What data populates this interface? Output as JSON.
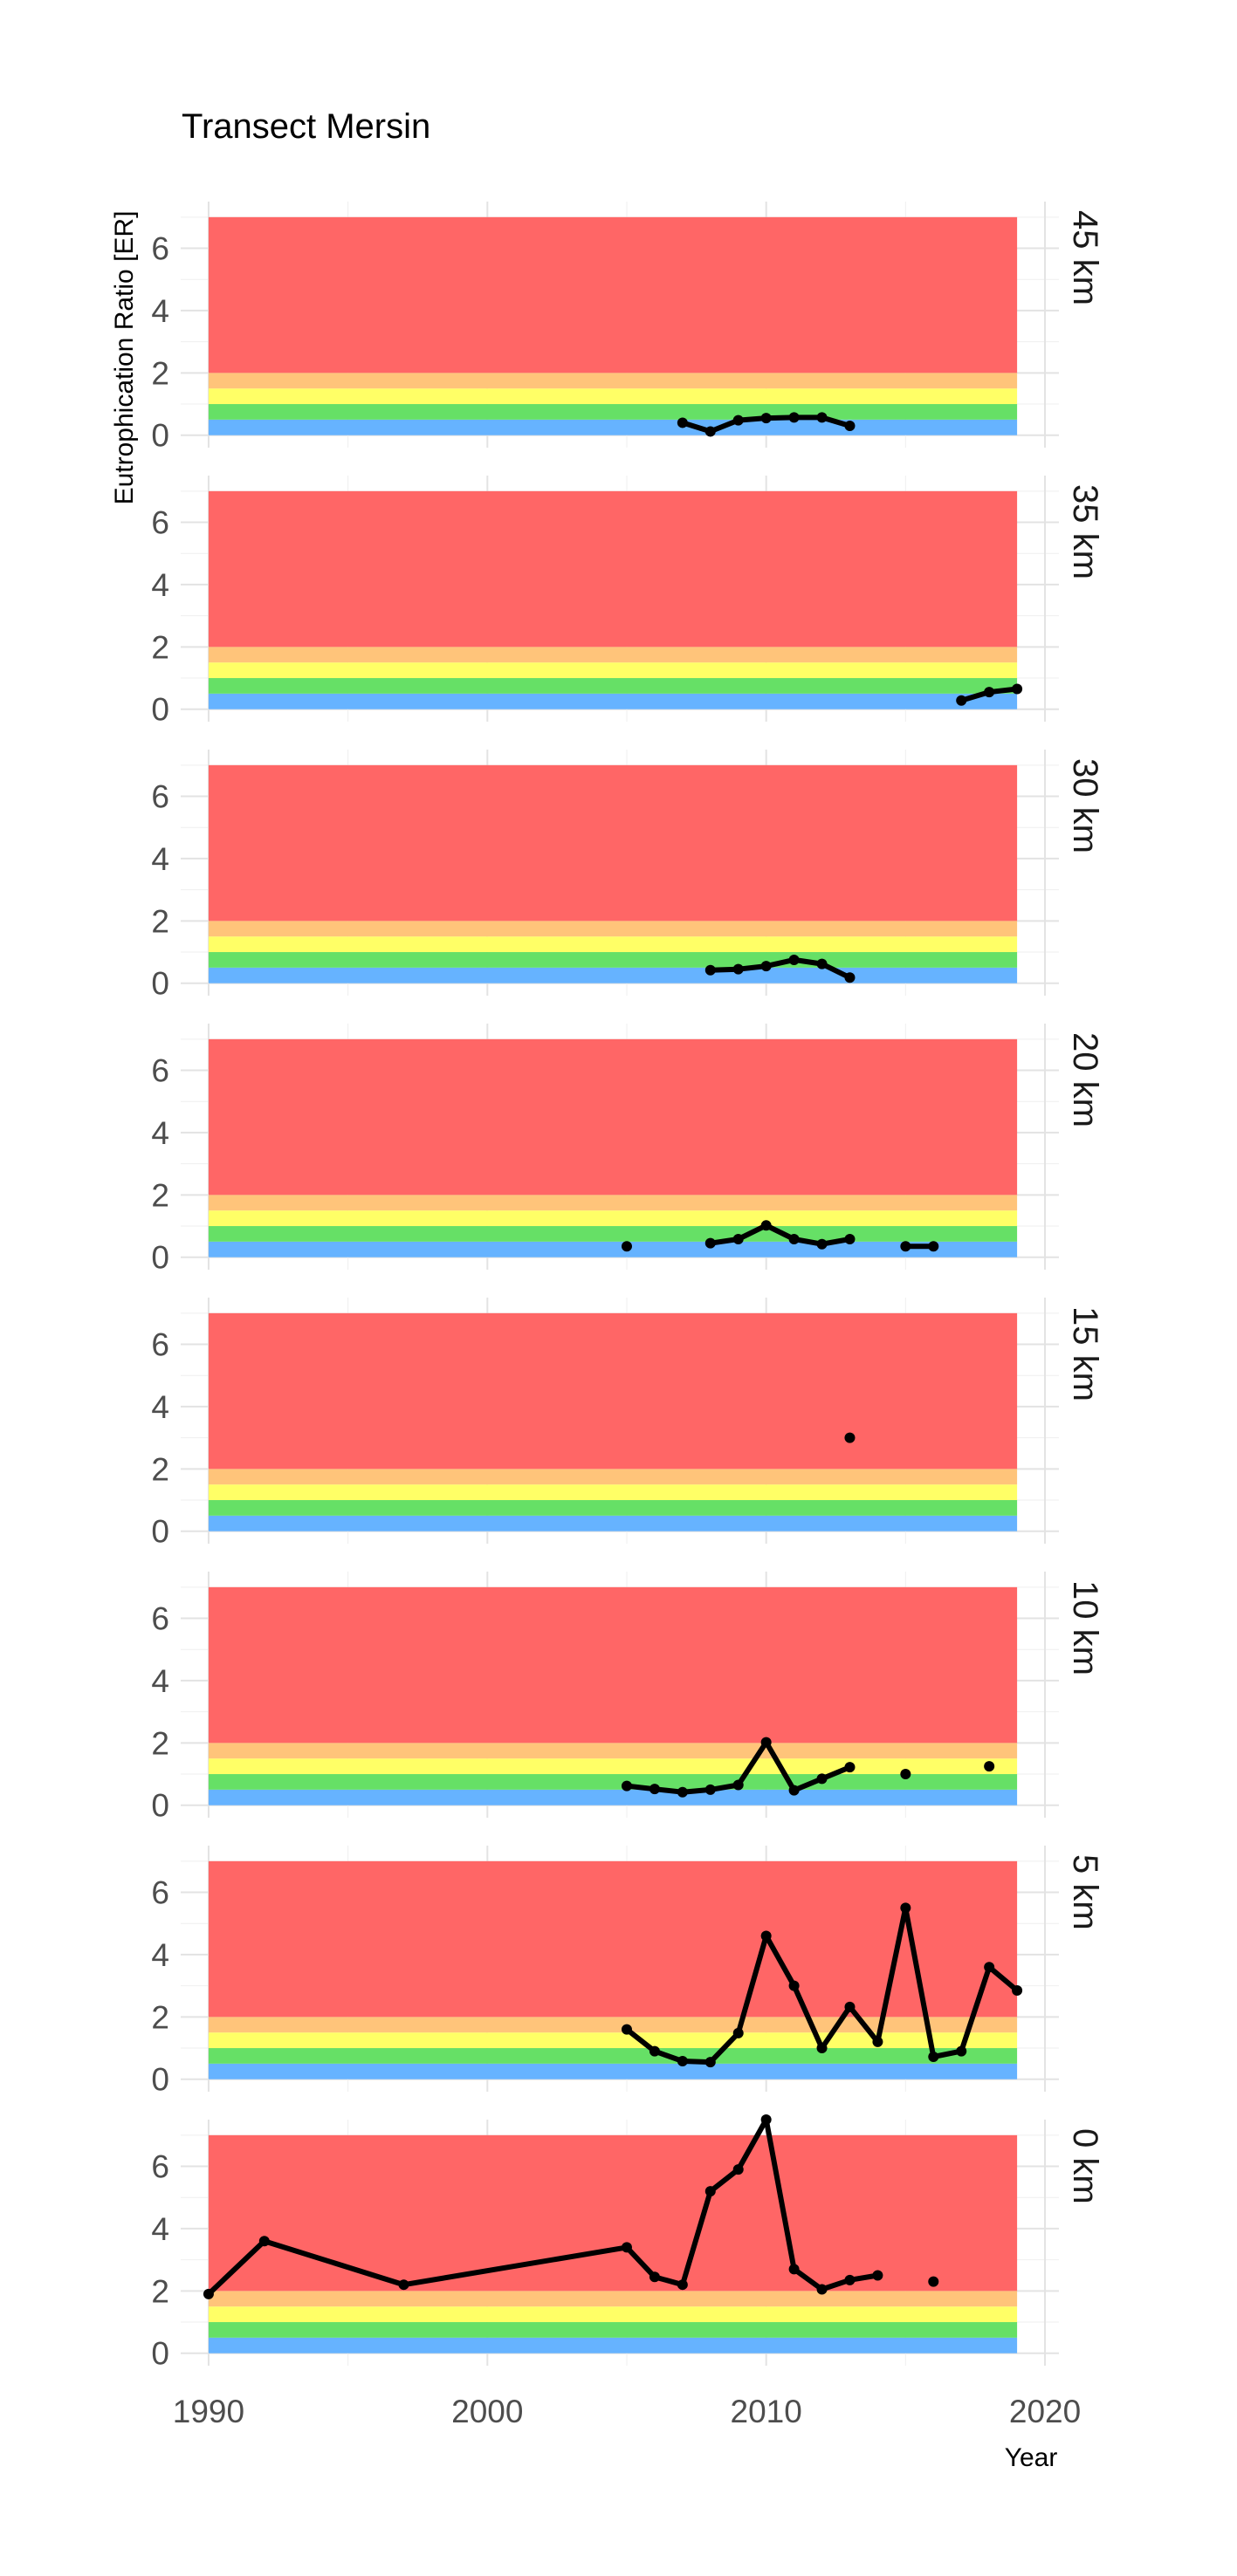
{
  "chart_data": {
    "type": "line",
    "title": "Transect Mersin",
    "xlabel": "Year",
    "ylabel": "Eutrophication Ratio [ER]",
    "xlim": [
      1989,
      2020.5
    ],
    "ylim": [
      -0.4,
      7.5
    ],
    "x_ticks": [
      1990,
      2000,
      2010,
      2020
    ],
    "y_ticks": [
      0,
      2,
      4,
      6
    ],
    "grid": true,
    "facet_by": "distance",
    "bands": [
      {
        "from": 0,
        "to": 0.5,
        "color": "#66b3ff"
      },
      {
        "from": 0.5,
        "to": 1.0,
        "color": "#66e066"
      },
      {
        "from": 1.0,
        "to": 1.5,
        "color": "#ffff66"
      },
      {
        "from": 1.5,
        "to": 2.0,
        "color": "#ffc47a"
      },
      {
        "from": 2.0,
        "to": 7.0,
        "color": "#ff6666"
      }
    ],
    "panels": [
      {
        "label": "45 km",
        "segments": [
          [
            [
              2007,
              0.4
            ],
            [
              2008,
              0.12
            ],
            [
              2009,
              0.48
            ],
            [
              2010,
              0.55
            ],
            [
              2011,
              0.57
            ],
            [
              2012,
              0.57
            ],
            [
              2013,
              0.3
            ]
          ]
        ],
        "points": []
      },
      {
        "label": "35 km",
        "segments": [
          [
            [
              2017,
              0.28
            ],
            [
              2018,
              0.55
            ],
            [
              2019,
              0.65
            ]
          ]
        ],
        "points": []
      },
      {
        "label": "30 km",
        "segments": [
          [
            [
              2008,
              0.42
            ],
            [
              2009,
              0.45
            ],
            [
              2010,
              0.55
            ],
            [
              2011,
              0.75
            ],
            [
              2012,
              0.62
            ],
            [
              2013,
              0.18
            ]
          ]
        ],
        "points": []
      },
      {
        "label": "20 km",
        "segments": [
          [
            [
              2008,
              0.45
            ],
            [
              2009,
              0.58
            ],
            [
              2010,
              1.02
            ],
            [
              2011,
              0.58
            ],
            [
              2012,
              0.42
            ],
            [
              2013,
              0.58
            ]
          ],
          [
            [
              2015,
              0.35
            ],
            [
              2016,
              0.35
            ]
          ]
        ],
        "points": [
          [
            2005,
            0.35
          ]
        ]
      },
      {
        "label": "15 km",
        "segments": [],
        "points": [
          [
            2013,
            3.0
          ]
        ]
      },
      {
        "label": "10 km",
        "segments": [
          [
            [
              2005,
              0.62
            ],
            [
              2006,
              0.52
            ],
            [
              2007,
              0.42
            ],
            [
              2008,
              0.5
            ],
            [
              2009,
              0.65
            ],
            [
              2010,
              2.02
            ],
            [
              2011,
              0.48
            ],
            [
              2012,
              0.85
            ],
            [
              2013,
              1.22
            ]
          ]
        ],
        "points": [
          [
            2015,
            1.0
          ],
          [
            2018,
            1.25
          ]
        ]
      },
      {
        "label": "5 km",
        "segments": [
          [
            [
              2005,
              1.6
            ],
            [
              2006,
              0.9
            ],
            [
              2007,
              0.58
            ],
            [
              2008,
              0.55
            ],
            [
              2009,
              1.48
            ],
            [
              2010,
              4.6
            ],
            [
              2011,
              3.0
            ],
            [
              2012,
              1.0
            ],
            [
              2013,
              2.32
            ],
            [
              2014,
              1.2
            ],
            [
              2015,
              5.5
            ],
            [
              2016,
              0.72
            ],
            [
              2017,
              0.9
            ],
            [
              2018,
              3.6
            ],
            [
              2019,
              2.85
            ]
          ]
        ],
        "points": []
      },
      {
        "label": "0 km",
        "segments": [
          [
            [
              1990,
              1.9
            ],
            [
              1992,
              3.6
            ],
            [
              1997,
              2.2
            ],
            [
              2005,
              3.4
            ],
            [
              2006,
              2.45
            ],
            [
              2007,
              2.2
            ],
            [
              2008,
              5.2
            ],
            [
              2009,
              5.9
            ],
            [
              2010,
              7.5
            ],
            [
              2011,
              2.7
            ],
            [
              2012,
              2.05
            ],
            [
              2013,
              2.35
            ],
            [
              2014,
              2.5
            ]
          ]
        ],
        "points": [
          [
            2016,
            2.3
          ]
        ]
      }
    ]
  }
}
